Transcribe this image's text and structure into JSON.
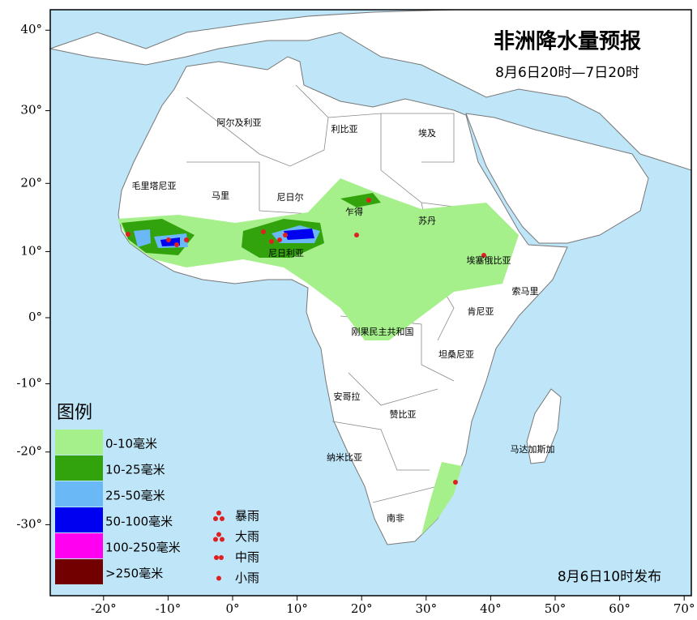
{
  "title": "非洲降水量预报",
  "subtitle": "8月6日20时—7日20时",
  "issued": "8月6日10时发布",
  "countries": [
    "阿尔及利亚",
    "利比亚",
    "埃及",
    "毛里塔尼亚",
    "马里",
    "尼日尔",
    "乍得",
    "苏丹",
    "尼日利亚",
    "埃塞俄比亚",
    "索马里",
    "肯尼亚",
    "刚果民主共和国",
    "坦桑尼亚",
    "安哥拉",
    "赞比亚",
    "纳米比亚",
    "马达加斯加",
    "南非"
  ],
  "legend": {
    "title": "图例",
    "precip": [
      {
        "label": "0-10毫米",
        "color": "#a6f08c"
      },
      {
        "label": "10-25毫米",
        "color": "#33a30d"
      },
      {
        "label": "25-50毫米",
        "color": "#6ab8f5"
      },
      {
        "label": "50-100毫米",
        "color": "#0000f0"
      },
      {
        "label": "100-250毫米",
        "color": "#ff00f0"
      },
      {
        "label": ">250毫米",
        "color": "#720000"
      }
    ],
    "rain": [
      "暴雨",
      "大雨",
      "中雨",
      "小雨"
    ]
  },
  "lon_ticks": [
    {
      "value": -20,
      "label": "-20°"
    },
    {
      "value": -10,
      "label": "-10°"
    },
    {
      "value": 0,
      "label": "0°"
    },
    {
      "value": 10,
      "label": "10°"
    },
    {
      "value": 20,
      "label": "20°"
    },
    {
      "value": 30,
      "label": "30°"
    },
    {
      "value": 40,
      "label": "40°"
    },
    {
      "value": 50,
      "label": "50°"
    },
    {
      "value": 60,
      "label": "60°"
    },
    {
      "value": 70,
      "label": "70°"
    }
  ],
  "lat_ticks": [
    {
      "value": 40,
      "label": "40°"
    },
    {
      "value": 30,
      "label": "30°"
    },
    {
      "value": 20,
      "label": "20°"
    },
    {
      "value": 10,
      "label": "10°"
    },
    {
      "value": 0,
      "label": "0°"
    },
    {
      "value": -10,
      "label": "-10°"
    },
    {
      "value": -20,
      "label": "-20°"
    },
    {
      "value": -30,
      "label": "-30°"
    }
  ]
}
